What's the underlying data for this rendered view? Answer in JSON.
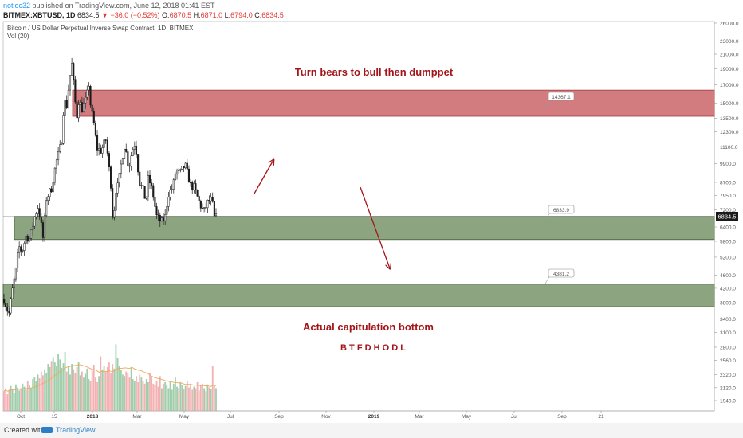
{
  "header": {
    "user": "notloc32",
    "published": "published on TradingView.com, June 12, 2018 01:41 EST",
    "symbol": "BITMEX:XBTUSD, 1D",
    "last": "6834.5",
    "change": "▼ −36.0 (−0.52%)",
    "o_label": "O:",
    "o": "6870.5",
    "h_label": "H:",
    "h": "6871.0",
    "l_label": "L:",
    "l": "6794.0",
    "c_label": "C:",
    "c": "6834.5"
  },
  "chart_data": {
    "type": "candlestick",
    "title": "Bitcoin / US Dollar Perpetual Inverse Swap Contract, 1D, BITMEX",
    "volume_label": "Vol (20)",
    "price_scale": "log",
    "ylim": [
      1940,
      26000
    ],
    "y_ticks": [
      "26000.0",
      "23000.0",
      "21000.0",
      "19000.0",
      "17000.0",
      "15000.0",
      "13500.0",
      "12300.0",
      "11100.0",
      "9900.0",
      "8700.0",
      "7950.0",
      "7200.0",
      "6400.0",
      "5800.0",
      "5200.0",
      "4600.0",
      "4200.0",
      "3800.0",
      "3400.0",
      "3100.0",
      "2800.0",
      "2560.0",
      "2320.0",
      "2120.0",
      "1940.0"
    ],
    "x_ticks": [
      "Oct",
      "15",
      "2018",
      "Mar",
      "May",
      "Jul",
      "Sep",
      "Nov",
      "2019",
      "Mar",
      "May",
      "Jul",
      "Sep",
      "21"
    ],
    "last_price_label": "6834.5",
    "price_path": [
      [
        "2017-09-25",
        3900
      ],
      [
        "2017-10-01",
        3500
      ],
      [
        "2017-10-05",
        4100
      ],
      [
        "2017-10-10",
        4800
      ],
      [
        "2017-10-13",
        5600
      ],
      [
        "2017-10-17",
        5400
      ],
      [
        "2017-10-22",
        6000
      ],
      [
        "2017-10-27",
        5900
      ],
      [
        "2017-11-01",
        6800
      ],
      [
        "2017-11-06",
        7400
      ],
      [
        "2017-11-10",
        6400
      ],
      [
        "2017-11-12",
        5900
      ],
      [
        "2017-11-16",
        7800
      ],
      [
        "2017-11-22",
        8300
      ],
      [
        "2017-11-28",
        10000
      ],
      [
        "2017-12-02",
        10800
      ],
      [
        "2017-12-05",
        11800
      ],
      [
        "2017-12-08",
        16000
      ],
      [
        "2017-12-10",
        14000
      ],
      [
        "2017-12-13",
        16500
      ],
      [
        "2017-12-17",
        19800
      ],
      [
        "2017-12-20",
        16500
      ],
      [
        "2017-12-23",
        13500
      ],
      [
        "2017-12-26",
        15600
      ],
      [
        "2017-12-29",
        14300
      ],
      [
        "2018-01-04",
        15500
      ],
      [
        "2018-01-07",
        17100
      ],
      [
        "2018-01-10",
        14000
      ],
      [
        "2018-01-12",
        13700
      ],
      [
        "2018-01-17",
        11000
      ],
      [
        "2018-01-22",
        10800
      ],
      [
        "2018-01-28",
        11700
      ],
      [
        "2018-02-01",
        9500
      ],
      [
        "2018-02-04",
        8200
      ],
      [
        "2018-02-06",
        6100
      ],
      [
        "2018-02-08",
        8200
      ],
      [
        "2018-02-12",
        8500
      ],
      [
        "2018-02-16",
        10000
      ],
      [
        "2018-02-20",
        11300
      ],
      [
        "2018-02-25",
        9600
      ],
      [
        "2018-03-01",
        10800
      ],
      [
        "2018-03-05",
        11500
      ],
      [
        "2018-03-10",
        8700
      ],
      [
        "2018-03-15",
        8200
      ],
      [
        "2018-03-18",
        7600
      ],
      [
        "2018-03-21",
        9000
      ],
      [
        "2018-03-26",
        8200
      ],
      [
        "2018-03-31",
        6900
      ],
      [
        "2018-04-06",
        6600
      ],
      [
        "2018-04-11",
        6900
      ],
      [
        "2018-04-14",
        8000
      ],
      [
        "2018-04-20",
        8400
      ],
      [
        "2018-04-24",
        9500
      ],
      [
        "2018-04-28",
        9200
      ],
      [
        "2018-05-05",
        9800
      ],
      [
        "2018-05-12",
        8500
      ],
      [
        "2018-05-16",
        8400
      ],
      [
        "2018-05-23",
        7500
      ],
      [
        "2018-05-28",
        7100
      ],
      [
        "2018-06-02",
        7600
      ],
      [
        "2018-06-07",
        7700
      ],
      [
        "2018-06-10",
        6800
      ],
      [
        "2018-06-12",
        6834.5
      ]
    ],
    "volume": [
      0.26,
      0.3,
      0.22,
      0.28,
      0.33,
      0.29,
      0.24,
      0.35,
      0.31,
      0.27,
      0.3,
      0.36,
      0.32,
      0.28,
      0.4,
      0.34,
      0.3,
      0.42,
      0.45,
      0.39,
      0.48,
      0.43,
      0.52,
      0.47,
      0.55,
      0.5,
      0.62,
      0.58,
      0.66,
      0.71,
      0.64,
      0.6,
      0.75,
      0.68,
      0.57,
      0.63,
      0.78,
      0.52,
      0.6,
      0.48,
      0.62,
      0.55,
      0.5,
      0.58,
      0.65,
      0.47,
      0.52,
      0.44,
      0.49,
      0.56,
      0.42,
      0.4,
      0.53,
      0.61,
      0.44,
      0.38,
      0.46,
      0.72,
      0.55,
      0.6,
      0.52,
      0.58,
      0.64,
      0.5,
      0.62,
      0.56,
      0.88,
      0.7,
      0.6,
      0.54,
      0.48,
      0.46,
      0.52,
      0.5,
      0.44,
      0.58,
      0.42,
      0.4,
      0.46,
      0.38,
      0.48,
      0.44,
      0.4,
      0.36,
      0.42,
      0.38,
      0.5,
      0.44,
      0.36,
      0.34,
      0.4,
      0.32,
      0.46,
      0.3,
      0.36,
      0.38,
      0.34,
      0.3,
      0.4,
      0.28,
      0.36,
      0.44,
      0.32,
      0.3,
      0.38,
      0.34,
      0.29,
      0.33,
      0.4,
      0.31,
      0.36,
      0.28,
      0.32,
      0.3,
      0.38,
      0.27,
      0.34,
      0.36,
      0.3,
      0.26,
      0.35,
      0.31,
      0.29,
      0.6,
      0.33,
      0.3
    ],
    "zones": [
      {
        "name": "resistance",
        "from": 13700,
        "to": 16400,
        "color": "#c0494e"
      },
      {
        "name": "support-upper",
        "from": 5870,
        "to": 6880,
        "color": "#5b7f4a"
      },
      {
        "name": "support-lower",
        "from": 3700,
        "to": 4320,
        "color": "#5b7f4a"
      }
    ],
    "zone_labels": [
      "14367.1",
      "6833.9",
      "4381.2"
    ],
    "annotations": {
      "top": "Turn bears to bull then dumppet",
      "bottom": "Actual capitulation bottom",
      "bottom2": "B T F D H O D L"
    },
    "colors": {
      "annotation": "#a3151a",
      "candle": "#1a1a1a",
      "vol_up": "#8fc49b",
      "vol_down": "#f2a3a7",
      "vol_ma": "#f0a95a"
    }
  },
  "footer": {
    "created": "Created with",
    "brand": "TradingView"
  }
}
